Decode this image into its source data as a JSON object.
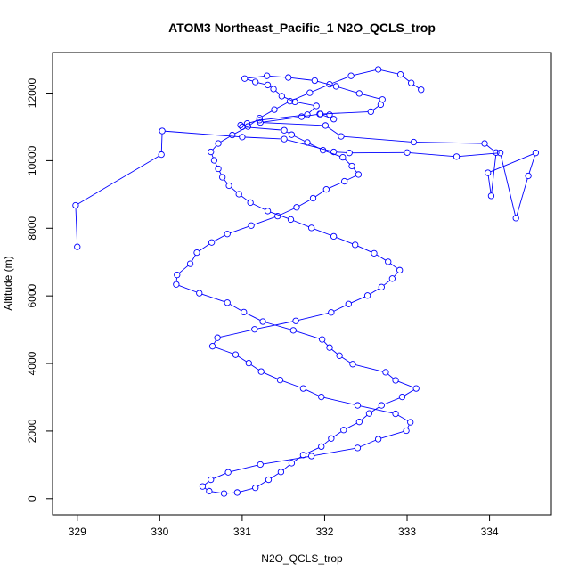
{
  "chart_data": {
    "type": "line",
    "title": "ATOM3 Northeast_Pacific_1 N2O_QCLS_trop",
    "xlabel": "N2O_QCLS_trop",
    "ylabel": "Altitude (m)",
    "xlim": [
      328.7,
      334.75
    ],
    "ylim": [
      -480,
      13200
    ],
    "xticks": [
      329,
      330,
      331,
      332,
      333,
      334
    ],
    "yticks": [
      0,
      2000,
      4000,
      6000,
      8000,
      10000,
      12000
    ],
    "grid": false,
    "legend": "none",
    "line_color": "#0000ff",
    "marker": "open-circle",
    "x": [
      329.0,
      328.98,
      330.02,
      330.03,
      331.0,
      331.51,
      332.11,
      332.3,
      333.0,
      333.6,
      334.13,
      334.32,
      334.47,
      334.56,
      333.98,
      334.02,
      334.08,
      333.94,
      333.08,
      332.2,
      332.01,
      331.22,
      331.72,
      331.94,
      332.11,
      332.06,
      331.95,
      332.56,
      332.68,
      332.7,
      332.42,
      332.14,
      331.88,
      331.56,
      331.3,
      331.03,
      331.16,
      331.31,
      331.38,
      331.48,
      331.64,
      331.9,
      331.79,
      331.21,
      331.06,
      330.98,
      331.0,
      331.51,
      331.6,
      331.79,
      331.98,
      332.22,
      332.33,
      332.41,
      332.24,
      332.02,
      331.86,
      331.66,
      331.43,
      331.11,
      330.82,
      330.63,
      330.45,
      330.37,
      330.21,
      330.2,
      330.48,
      330.82,
      331.02,
      331.25,
      331.62,
      331.97,
      332.06,
      332.18,
      332.34,
      332.74,
      332.86,
      333.11,
      332.94,
      332.69,
      332.54,
      332.42,
      332.23,
      332.08,
      331.96,
      331.74,
      331.6,
      331.47,
      331.32,
      331.16,
      330.94,
      330.78,
      330.6,
      330.52,
      330.62,
      330.83,
      331.22,
      331.84,
      332.4,
      332.65,
      332.99,
      333.04,
      332.86,
      332.4,
      331.96,
      331.74,
      331.46,
      331.23,
      331.08,
      330.92,
      330.64,
      330.7,
      331.15,
      331.65,
      332.08,
      332.29,
      332.52,
      332.69,
      332.82,
      332.91,
      332.77,
      332.6,
      332.37,
      332.11,
      331.84,
      331.59,
      331.31,
      331.1,
      330.96,
      330.84,
      330.76,
      330.71,
      330.66,
      330.62,
      330.71,
      330.88,
      331.07,
      331.21,
      331.39,
      331.58,
      331.82,
      332.06,
      332.32,
      332.65,
      332.92,
      333.05,
      333.17
    ],
    "y": [
      7450,
      8680,
      10180,
      10880,
      10700,
      10640,
      10260,
      10230,
      10240,
      10120,
      10230,
      8300,
      9550,
      10230,
      9640,
      8960,
      10240,
      10510,
      10550,
      10720,
      11040,
      11130,
      11300,
      11380,
      11230,
      11360,
      11380,
      11450,
      11660,
      11810,
      11990,
      12200,
      12370,
      12460,
      12510,
      12430,
      12330,
      12240,
      12120,
      11910,
      11740,
      11620,
      11360,
      11200,
      11100,
      11050,
      11000,
      10900,
      10770,
      10540,
      10310,
      10100,
      9840,
      9590,
      9390,
      9150,
      8890,
      8620,
      8360,
      8080,
      7830,
      7580,
      7280,
      6950,
      6620,
      6340,
      6080,
      5800,
      5520,
      5240,
      4980,
      4710,
      4470,
      4230,
      3980,
      3740,
      3500,
      3260,
      3010,
      2760,
      2520,
      2270,
      2030,
      1780,
      1540,
      1290,
      1050,
      790,
      560,
      320,
      180,
      150,
      220,
      360,
      560,
      780,
      1010,
      1260,
      1500,
      1760,
      2010,
      2260,
      2510,
      2760,
      3010,
      3260,
      3510,
      3760,
      4010,
      4260,
      4510,
      4760,
      5010,
      5260,
      5510,
      5760,
      6010,
      6260,
      6510,
      6760,
      7010,
      7260,
      7510,
      7760,
      8010,
      8260,
      8510,
      8760,
      9010,
      9260,
      9510,
      9760,
      10010,
      10260,
      10510,
      10760,
      11010,
      11260,
      11510,
      11760,
      12010,
      12260,
      12510,
      12700,
      12550,
      12300,
      12100
    ]
  }
}
